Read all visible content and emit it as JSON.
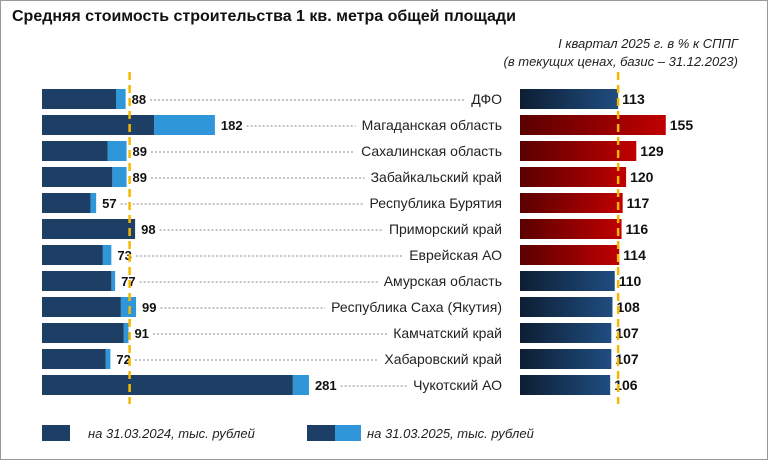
{
  "title": "Средняя стоимость строительства 1 кв. метра общей площади",
  "subtitle_line1": "I квартал 2025 г. в % к СППГ",
  "subtitle_line2": "(в текущих ценах, базис – 31.12.2023)",
  "legend": {
    "item1": "на 31.03.2024, тыс. рублей",
    "item2": "на 31.03.2025, тыс. рублей"
  },
  "colors": {
    "dark_blue": "#1d3f66",
    "light_blue": "#2e96d9",
    "red": "#c00000",
    "dark_red": "#5a0000",
    "navy_start": "#0d1e33",
    "navy_end": "#1f4d80",
    "ref_line": "#f5b800"
  },
  "chart_data": [
    {
      "type": "bar",
      "orientation": "horizontal",
      "title": "",
      "categories": [
        "ДФО",
        "Магаданская область",
        "Сахалинская область",
        "Забайкальский край",
        "Республика Бурятия",
        "Приморский край",
        "Еврейская АО",
        "Амурская область",
        "Республика Саха (Якутия)",
        "Камчатский край",
        "Хабаровский край",
        "Чукотский АО"
      ],
      "series": [
        {
          "name": "на 31.03.2024, тыс. рублей",
          "values": [
            78,
            118,
            69,
            74,
            51,
            98,
            64,
            73,
            83,
            86,
            67,
            264
          ]
        },
        {
          "name": "на 31.03.2025, тыс. рублей",
          "values": [
            88,
            182,
            89,
            89,
            57,
            98,
            73,
            77,
            99,
            91,
            72,
            281
          ]
        }
      ],
      "data_labels": [
        "88",
        "182",
        "89",
        "89",
        "57",
        "98",
        "73",
        "77",
        "99",
        "91",
        "72",
        "281"
      ],
      "reference_line": 88
    },
    {
      "type": "bar",
      "orientation": "horizontal",
      "title": "I квартал 2025 г. в % к СППГ",
      "categories": [
        "ДФО",
        "Магаданская область",
        "Сахалинская область",
        "Забайкальский край",
        "Республика Бурятия",
        "Приморский край",
        "Еврейская АО",
        "Амурская область",
        "Республика Саха (Якутия)",
        "Камчатский край",
        "Хабаровский край",
        "Чукотский АО"
      ],
      "values": [
        113,
        155,
        129,
        120,
        117,
        116,
        114,
        110,
        108,
        107,
        107,
        106
      ],
      "data_labels": [
        "113",
        "155",
        "129",
        "120",
        "117",
        "116",
        "114",
        "110",
        "108",
        "107",
        "107",
        "106"
      ],
      "highlight": [
        "base",
        "high",
        "high",
        "high",
        "high",
        "high",
        "high",
        "low",
        "low",
        "low",
        "low",
        "low"
      ],
      "reference_line": 113
    }
  ]
}
